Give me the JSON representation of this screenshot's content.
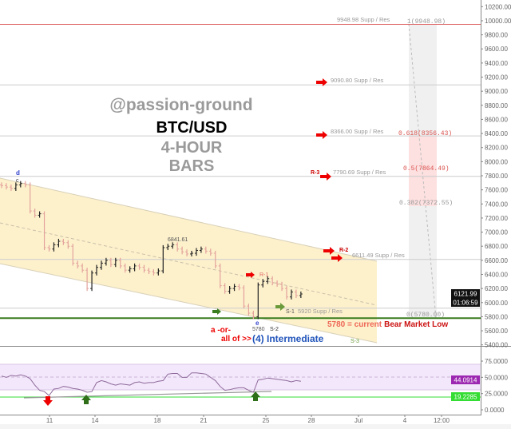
{
  "watermark": {
    "author": "@passion-ground",
    "symbol": "BTC/USD",
    "timeframe": "4-HOUR",
    "type": "BARS"
  },
  "chart_data": [
    {
      "type": "ohlc",
      "pane": "price",
      "bar_interval": "4-hour",
      "close": [
        7660,
        7640,
        7620,
        7670,
        7690,
        7670,
        7300,
        7240,
        7260,
        6780,
        6760,
        6820,
        6870,
        6850,
        6800,
        6560,
        6520,
        6460,
        6200,
        6420,
        6500,
        6560,
        6600,
        6540,
        6600,
        6520,
        6460,
        6480,
        6520,
        6500,
        6460,
        6440,
        6420,
        6450,
        6780,
        6800,
        6820,
        6760,
        6720,
        6690,
        6700,
        6740,
        6760,
        6730,
        6700,
        6520,
        6240,
        6160,
        6200,
        6230,
        6210,
        5950,
        5850,
        5800,
        6250,
        6300,
        6340,
        6280,
        6260,
        6200,
        6080,
        6150,
        6100,
        6121.99
      ],
      "last_price": "6121.99",
      "countdown": "01:06:59",
      "ylim": [
        5400,
        10300
      ],
      "y_ticks": [
        "10200.00",
        "10000.00",
        "9800.00",
        "9600.00",
        "9400.00",
        "9200.00",
        "9000.00",
        "8800.00",
        "8600.00",
        "8400.00",
        "8200.00",
        "8000.00",
        "7800.00",
        "7600.00",
        "7400.00",
        "7200.00",
        "7000.00",
        "6800.00",
        "6600.00",
        "6400.00",
        "6200.00",
        "6000.00",
        "5800.00",
        "5600.00",
        "5400.00"
      ],
      "x_ticks": [
        "11",
        "14",
        "18",
        "21",
        "25",
        "28",
        "Jul",
        "4",
        "12:00"
      ],
      "levels": [
        {
          "value": 9948.98,
          "label": "9948.98 Supp / Res",
          "color": "#e06666"
        },
        {
          "value": 9090.8,
          "label": "9090.80  Supp / Res",
          "color": "#cccccc"
        },
        {
          "value": 8366.0,
          "label": "8366.00 Supp / Res",
          "color": "#cccccc"
        },
        {
          "value": 7790.69,
          "label": "7790.69 Supp / Res",
          "color": "#cccccc"
        },
        {
          "value": 6611.49,
          "label": "6611.49 Supp / Res",
          "color": "#cccccc"
        },
        {
          "value": 5920,
          "label": "5920 Supp / Res",
          "color": "#cccccc"
        },
        {
          "value": 5780,
          "label": "",
          "color": "#3a7d1e"
        }
      ],
      "fib": [
        {
          "label": "1(9948.98)",
          "color": "#999999"
        },
        {
          "label": "0.618(8356.43)",
          "color": "#d9534f"
        },
        {
          "label": "0.5(7864.49)",
          "color": "#d9534f"
        },
        {
          "label": "0.382(7372.55)",
          "color": "#999999"
        },
        {
          "label": "0(5780.00)",
          "color": "#999999"
        }
      ],
      "annotations": {
        "wave_d": "d",
        "wave_c": "c",
        "wave_e": "e",
        "high_label": "6841.61",
        "low_label": "5780",
        "r1": "R-1",
        "r2": "R-2",
        "r3": "R-3",
        "s1": "S-1",
        "s2": "S-2",
        "s3": "S-3",
        "alt_a": "a -or-",
        "alt_all": "all of >>",
        "wave_4": "(4) Intermediate",
        "bear_low_prefix": "5780 = current",
        "bear_low_suffix": "Bear Market Low"
      },
      "colors": {
        "up": "#222222",
        "down": "#e3a29c",
        "channel": "#fdf1cc"
      }
    },
    {
      "type": "line",
      "pane": "rsi",
      "values": [
        52,
        50,
        53,
        52,
        54,
        52,
        48,
        38,
        30,
        28,
        22,
        32,
        33,
        36,
        35,
        33,
        32,
        30,
        27,
        28,
        42,
        45,
        43,
        40,
        38,
        40,
        39,
        38,
        42,
        43,
        41,
        42,
        42,
        44,
        45,
        55,
        56,
        56,
        50,
        50,
        57,
        57,
        56,
        55,
        50,
        45,
        36,
        30,
        31,
        33,
        34,
        34,
        30,
        27,
        46,
        47,
        49,
        48,
        47,
        46,
        45,
        43,
        45,
        44.09
      ],
      "last_value": "44.0914",
      "support_value": "19.2285",
      "ylim": [
        0,
        80
      ],
      "y_ticks": [
        "75.0000",
        "50.0000",
        "25.0000",
        "0.0000"
      ],
      "band": [
        30,
        70
      ],
      "colors": {
        "line": "#8e6a9a",
        "band": "#f3e7fb",
        "tag": "#9c27b0",
        "support": "#33dd33"
      }
    }
  ]
}
